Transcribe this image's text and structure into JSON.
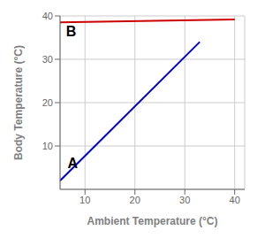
{
  "chart_data": {
    "type": "line",
    "xlabel": "Ambient Temperature (°C)",
    "ylabel": "Body Temperature (°C)",
    "xlim": [
      5,
      42
    ],
    "ylim": [
      0,
      40
    ],
    "xticks": [
      10,
      20,
      30,
      40
    ],
    "yticks": [
      10,
      20,
      30,
      40
    ],
    "grid": true,
    "series": [
      {
        "color": "#0000cc",
        "x": [
          5,
          33
        ],
        "values": [
          2,
          34
        ]
      },
      {
        "color": "#cc0000",
        "x": [
          5,
          40
        ],
        "values": [
          38.5,
          39.2
        ]
      }
    ],
    "annotations": [
      {
        "text": "A",
        "x": 6.5,
        "y": 6.0
      },
      {
        "text": "B",
        "x": 6.2,
        "y": 36.5
      }
    ]
  }
}
